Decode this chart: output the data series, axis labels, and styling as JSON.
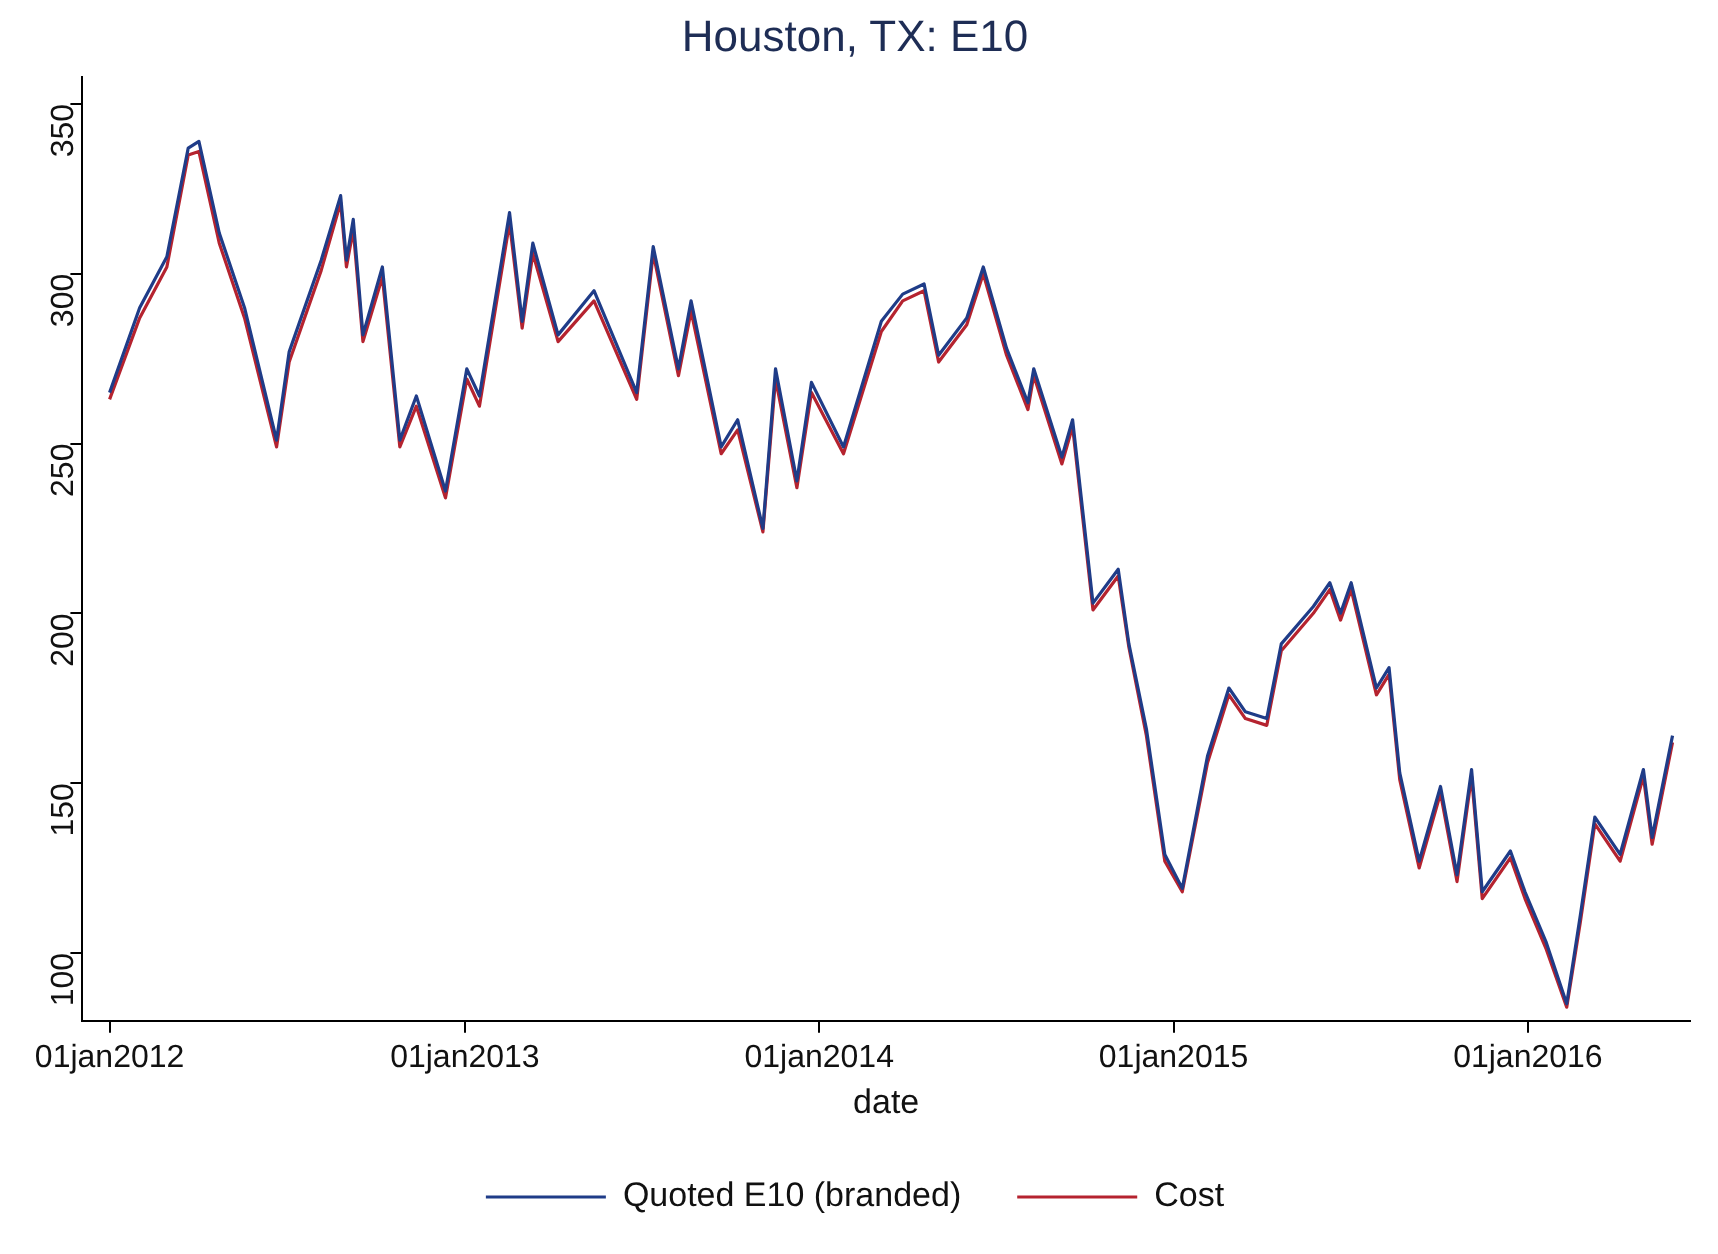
{
  "chart_data": {
    "type": "line",
    "title": "Houston, TX: E10",
    "xlabel": "date",
    "x": [
      "2012-01-01",
      "2012-02-01",
      "2012-02-29",
      "2012-03-22",
      "2012-04-02",
      "2012-04-23",
      "2012-05-19",
      "2012-06-21",
      "2012-07-04",
      "2012-08-06",
      "2012-08-26",
      "2012-09-01",
      "2012-09-08",
      "2012-09-18",
      "2012-10-08",
      "2012-10-26",
      "2012-11-12",
      "2012-12-12",
      "2013-01-03",
      "2013-01-16",
      "2013-02-16",
      "2013-03-01",
      "2013-03-12",
      "2013-04-07",
      "2013-05-14",
      "2013-06-27",
      "2013-07-14",
      "2013-08-09",
      "2013-08-22",
      "2013-09-22",
      "2013-10-09",
      "2013-11-04",
      "2013-11-17",
      "2013-12-09",
      "2013-12-24",
      "2014-01-26",
      "2014-03-06",
      "2014-03-28",
      "2014-04-19",
      "2014-05-04",
      "2014-06-02",
      "2014-06-19",
      "2014-07-13",
      "2014-08-04",
      "2014-08-10",
      "2014-09-08",
      "2014-09-19",
      "2014-10-10",
      "2014-11-05",
      "2014-11-16",
      "2014-12-04",
      "2014-12-23",
      "2015-01-10",
      "2015-02-05",
      "2015-02-27",
      "2015-03-16",
      "2015-04-07",
      "2015-04-22",
      "2015-05-25",
      "2015-06-11",
      "2015-06-22",
      "2015-07-03",
      "2015-07-29",
      "2015-08-11",
      "2015-08-22",
      "2015-09-11",
      "2015-10-03",
      "2015-10-20",
      "2015-11-04",
      "2015-11-15",
      "2015-12-14",
      "2015-12-29",
      "2016-01-20",
      "2016-02-10",
      "2016-02-24",
      "2016-03-10",
      "2016-04-05",
      "2016-04-29",
      "2016-05-08",
      "2016-05-29"
    ],
    "series": [
      {
        "name": "Quoted E10 (branded)",
        "color": "#1f3c88",
        "values": [
          265,
          290,
          305,
          337,
          339,
          312,
          290,
          251,
          277,
          304,
          323,
          304,
          316,
          282,
          302,
          251,
          264,
          236,
          272,
          264,
          318,
          286,
          309,
          282,
          295,
          265,
          308,
          272,
          292,
          249,
          257,
          225,
          272,
          239,
          268,
          249,
          286,
          294,
          297,
          276,
          287,
          302,
          278,
          262,
          272,
          246,
          257,
          203,
          213,
          191,
          166,
          129,
          119,
          158,
          178,
          171,
          169,
          191,
          202,
          209,
          200,
          209,
          178,
          184,
          153,
          127,
          149,
          123,
          154,
          118,
          130,
          118,
          103,
          85,
          111,
          140,
          129,
          154,
          134,
          164
        ]
      },
      {
        "name": "Cost",
        "color": "#b5232f",
        "values": [
          263,
          287,
          302,
          335,
          336,
          309,
          287,
          249,
          274,
          301,
          321,
          302,
          313,
          280,
          299,
          249,
          261,
          234,
          269,
          261,
          315,
          284,
          306,
          280,
          292,
          263,
          306,
          270,
          289,
          247,
          254,
          224,
          269,
          237,
          265,
          247,
          283,
          292,
          295,
          274,
          285,
          300,
          276,
          260,
          270,
          244,
          255,
          201,
          211,
          190,
          164,
          127,
          118,
          156,
          176,
          169,
          167,
          189,
          200,
          207,
          198,
          207,
          176,
          182,
          151,
          125,
          147,
          121,
          152,
          116,
          128,
          116,
          101,
          84,
          109,
          138,
          127,
          152,
          132,
          162
        ]
      }
    ],
    "xlim": [
      "2011-12-04",
      "2016-06-16"
    ],
    "xticks": [
      {
        "value": "2012-01-01",
        "label": "01jan2012"
      },
      {
        "value": "2013-01-01",
        "label": "01jan2013"
      },
      {
        "value": "2014-01-01",
        "label": "01jan2014"
      },
      {
        "value": "2015-01-01",
        "label": "01jan2015"
      },
      {
        "value": "2016-01-01",
        "label": "01jan2016"
      }
    ],
    "ylim": [
      80,
      358
    ],
    "yticks": [
      100,
      150,
      200,
      250,
      300,
      350
    ],
    "grid": false,
    "legend": "bottom",
    "marker": "none",
    "line_style": "solid"
  }
}
